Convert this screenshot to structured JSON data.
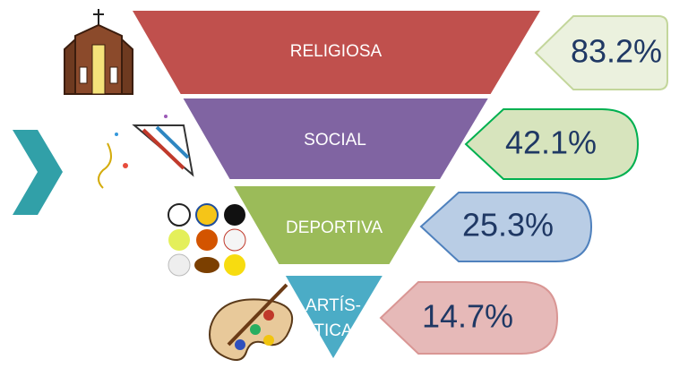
{
  "levels": [
    {
      "label": [
        "RELIGIOSA"
      ],
      "percent": "83.2%"
    },
    {
      "label": [
        "SOCIAL"
      ],
      "percent": "42.1%"
    },
    {
      "label": [
        "DEPORTIVA"
      ],
      "percent": "25.3%"
    },
    {
      "label": [
        "ARTÍS-",
        "TICA"
      ],
      "percent": "14.7%"
    }
  ]
}
